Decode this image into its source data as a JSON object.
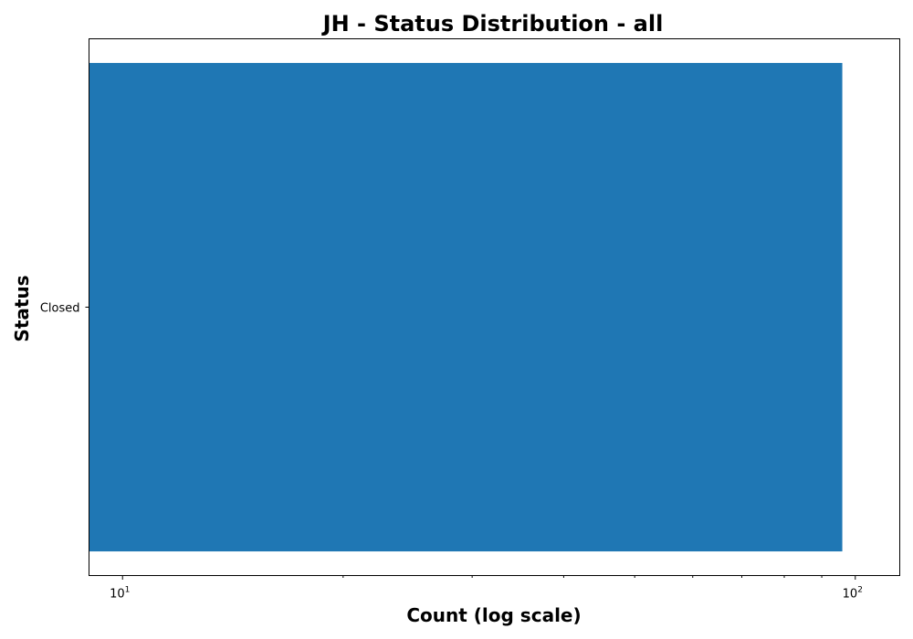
{
  "chart_data": {
    "type": "bar",
    "orientation": "horizontal",
    "title": "JH - Status Distribution - all",
    "xlabel": "Count (log scale)",
    "ylabel": "Status",
    "x_scale": "log",
    "xlim": [
      9,
      115
    ],
    "x_major_ticks": [
      {
        "base": "10",
        "exp": "1",
        "value": 10
      },
      {
        "base": "10",
        "exp": "2",
        "value": 100
      }
    ],
    "categories": [
      "Closed"
    ],
    "series": [
      {
        "values": [
          96
        ],
        "color": "#1f77b4"
      }
    ],
    "grid": false,
    "legend": "none"
  }
}
